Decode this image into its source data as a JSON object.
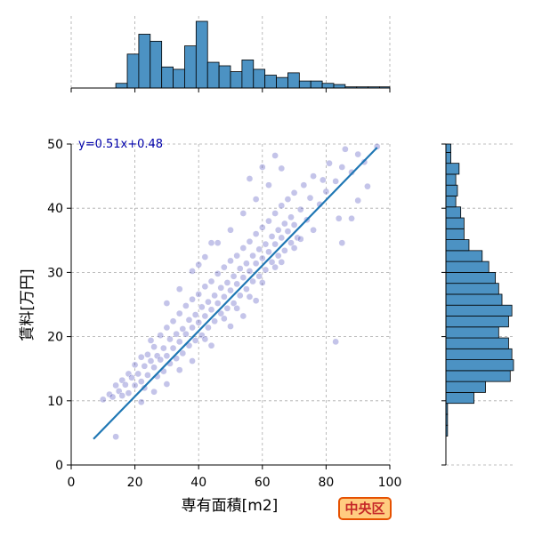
{
  "chart_data": {
    "type": "scatter",
    "title": "",
    "xlabel": "専有面積[m2]",
    "ylabel": "賃料[万円]",
    "xlim": [
      0,
      100
    ],
    "ylim": [
      0,
      50
    ],
    "xticks": [
      "0",
      "20",
      "40",
      "60",
      "80",
      "100"
    ],
    "yticks": [
      "0",
      "10",
      "20",
      "30",
      "40",
      "50"
    ],
    "grid": true,
    "regression": {
      "label": "y=0.51x+0.48",
      "slope": 0.51,
      "intercept": 0.48,
      "x_range": [
        7,
        96
      ],
      "color": "#1f77b4"
    },
    "point_color": "#3a3ab5",
    "hist_color": "#4c92c3",
    "scatter_series": [
      [
        10,
        10.2
      ],
      [
        12,
        11
      ],
      [
        13,
        10.6
      ],
      [
        14,
        12.4
      ],
      [
        15,
        11.5
      ],
      [
        16,
        13.2
      ],
      [
        16,
        10.8
      ],
      [
        17,
        12.5
      ],
      [
        18,
        14.2
      ],
      [
        18,
        11.2
      ],
      [
        19,
        13.6
      ],
      [
        20,
        12.4
      ],
      [
        20,
        15.6
      ],
      [
        21,
        14.2
      ],
      [
        22,
        13
      ],
      [
        22,
        16.8
      ],
      [
        23,
        15.4
      ],
      [
        23,
        12
      ],
      [
        24,
        17.2
      ],
      [
        24,
        14
      ],
      [
        25,
        16.2
      ],
      [
        25,
        19.4
      ],
      [
        26,
        15.2
      ],
      [
        26,
        18.4
      ],
      [
        27,
        13.8
      ],
      [
        27,
        17
      ],
      [
        28,
        16.4
      ],
      [
        28,
        20.2
      ],
      [
        29,
        14.6
      ],
      [
        29,
        18.2
      ],
      [
        30,
        17
      ],
      [
        30,
        21.4
      ],
      [
        31,
        15.8
      ],
      [
        31,
        19.6
      ],
      [
        32,
        18.2
      ],
      [
        32,
        22.4
      ],
      [
        33,
        16.6
      ],
      [
        33,
        20.4
      ],
      [
        34,
        19.2
      ],
      [
        34,
        23.6
      ],
      [
        35,
        17.4
      ],
      [
        35,
        21.2
      ],
      [
        36,
        20.4
      ],
      [
        36,
        24.8
      ],
      [
        37,
        18.6
      ],
      [
        37,
        22.6
      ],
      [
        38,
        21.4
      ],
      [
        38,
        25.8
      ],
      [
        39,
        19.4
      ],
      [
        39,
        23.4
      ],
      [
        40,
        22.2
      ],
      [
        40,
        26.6
      ],
      [
        41,
        20.2
      ],
      [
        41,
        24.6
      ],
      [
        42,
        23.2
      ],
      [
        42,
        27.8
      ],
      [
        43,
        21.4
      ],
      [
        43,
        25.4
      ],
      [
        44,
        24.2
      ],
      [
        44,
        28.6
      ],
      [
        45,
        22.4
      ],
      [
        45,
        26.4
      ],
      [
        46,
        25.2
      ],
      [
        46,
        29.8
      ],
      [
        47,
        23.6
      ],
      [
        47,
        27.6
      ],
      [
        48,
        26.2
      ],
      [
        48,
        30.8
      ],
      [
        49,
        24.4
      ],
      [
        49,
        28.4
      ],
      [
        50,
        27.2
      ],
      [
        50,
        31.8
      ],
      [
        51,
        25.2
      ],
      [
        51,
        29.4
      ],
      [
        52,
        28.2
      ],
      [
        52,
        32.6
      ],
      [
        53,
        26.4
      ],
      [
        53,
        30.6
      ],
      [
        54,
        29.2
      ],
      [
        54,
        33.8
      ],
      [
        55,
        27.4
      ],
      [
        55,
        31.4
      ],
      [
        56,
        30.2
      ],
      [
        56,
        34.8
      ],
      [
        57,
        28.6
      ],
      [
        57,
        32.6
      ],
      [
        58,
        31.4
      ],
      [
        58,
        36
      ],
      [
        59,
        29.4
      ],
      [
        59,
        33.6
      ],
      [
        60,
        32.2
      ],
      [
        60,
        37
      ],
      [
        61,
        30.4
      ],
      [
        61,
        34.4
      ],
      [
        62,
        33.2
      ],
      [
        62,
        38
      ],
      [
        63,
        31.6
      ],
      [
        63,
        35.6
      ],
      [
        64,
        34.4
      ],
      [
        64,
        39.2
      ],
      [
        65,
        32.6
      ],
      [
        65,
        36.6
      ],
      [
        66,
        35.4
      ],
      [
        66,
        40.4
      ],
      [
        67,
        33.4
      ],
      [
        67,
        37.6
      ],
      [
        68,
        36.4
      ],
      [
        68,
        41.4
      ],
      [
        69,
        34.6
      ],
      [
        69,
        38.6
      ],
      [
        70,
        37.4
      ],
      [
        70,
        42.4
      ],
      [
        71,
        35.4
      ],
      [
        72,
        39.8
      ],
      [
        73,
        43.6
      ],
      [
        74,
        38.2
      ],
      [
        75,
        41.6
      ],
      [
        76,
        45
      ],
      [
        78,
        40.6
      ],
      [
        79,
        44.4
      ],
      [
        80,
        42.6
      ],
      [
        81,
        47
      ],
      [
        83,
        44.2
      ],
      [
        84,
        38.4
      ],
      [
        85,
        46.4
      ],
      [
        86,
        49.2
      ],
      [
        88,
        45.6
      ],
      [
        90,
        48.4
      ],
      [
        92,
        47.2
      ],
      [
        96,
        49.6
      ],
      [
        42,
        19.6
      ],
      [
        48,
        22.8
      ],
      [
        52,
        24.4
      ],
      [
        56,
        26.2
      ],
      [
        60,
        28.4
      ],
      [
        64,
        30.8
      ],
      [
        66,
        31.6
      ],
      [
        70,
        33.8
      ],
      [
        72,
        35.2
      ],
      [
        76,
        36.6
      ],
      [
        30,
        25.2
      ],
      [
        34,
        27.4
      ],
      [
        38,
        30.2
      ],
      [
        42,
        32.4
      ],
      [
        46,
        34.6
      ],
      [
        50,
        36.6
      ],
      [
        54,
        39.2
      ],
      [
        58,
        41.4
      ],
      [
        62,
        43.6
      ],
      [
        66,
        46.2
      ],
      [
        40,
        31.2
      ],
      [
        44,
        34.6
      ],
      [
        56,
        44.6
      ],
      [
        60,
        46.4
      ],
      [
        64,
        48.2
      ],
      [
        83,
        19.2
      ],
      [
        85,
        34.6
      ],
      [
        88,
        38.4
      ],
      [
        90,
        41.2
      ],
      [
        93,
        43.4
      ],
      [
        14,
        4.4
      ],
      [
        22,
        9.8
      ],
      [
        26,
        11.4
      ],
      [
        30,
        12.6
      ],
      [
        34,
        14.8
      ],
      [
        38,
        16.2
      ],
      [
        44,
        18.6
      ],
      [
        50,
        21.6
      ],
      [
        54,
        23.2
      ],
      [
        58,
        25.6
      ]
    ],
    "top_histogram": {
      "bin_edges": [
        14,
        17.6,
        21.2,
        24.8,
        28.4,
        32,
        35.6,
        39.2,
        42.8,
        46.4,
        50,
        53.6,
        57.2,
        60.8,
        64.4,
        68,
        71.6,
        75.2,
        78.8,
        82.4,
        86,
        89.6,
        93.2,
        96.8,
        100.4
      ],
      "counts": [
        4,
        29,
        46,
        40,
        18,
        16,
        36,
        57,
        22,
        19,
        14,
        24,
        16,
        11,
        9,
        13,
        6,
        6,
        4,
        3,
        1,
        1,
        1,
        1
      ]
    },
    "right_histogram": {
      "bin_edges": [
        4.5,
        6.2,
        7.9,
        9.6,
        11.3,
        13,
        14.7,
        16.4,
        18.1,
        19.8,
        21.5,
        23.2,
        24.9,
        26.6,
        28.3,
        30,
        31.7,
        33.4,
        35.1,
        36.8,
        38.5,
        40.2,
        41.9,
        43.6,
        45.3,
        47,
        48.7,
        50.4
      ],
      "counts": [
        1,
        1,
        1,
        17,
        24,
        39,
        41,
        40,
        38,
        32,
        38,
        40,
        34,
        32,
        30,
        26,
        22,
        14,
        11,
        11,
        9,
        6,
        7,
        6,
        8,
        3,
        3
      ]
    }
  },
  "badge": {
    "label": "中央区"
  }
}
